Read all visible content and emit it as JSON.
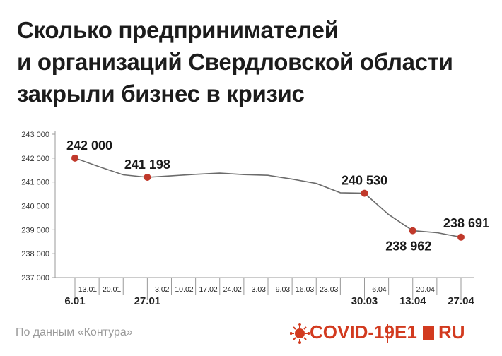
{
  "title_lines": [
    "Сколько предпринимателей",
    "и организаций Свердловской области",
    "закрыли бизнес в кризис"
  ],
  "source_text": "По данным «Контура»",
  "brand": {
    "covid_label": "COVID-19",
    "e1_label": "E1",
    "ru_label": "RU",
    "accent_color": "#d23a1f"
  },
  "chart_data": {
    "type": "line",
    "title": "Сколько предпринимателей и организаций Свердловской области закрыли бизнес в кризис",
    "ylim": [
      237000,
      243000
    ],
    "yticks": [
      "237 000",
      "238 000",
      "239 000",
      "240 000",
      "241 000",
      "242 000",
      "243 000"
    ],
    "ytick_values": [
      237000,
      238000,
      239000,
      240000,
      241000,
      242000,
      243000
    ],
    "x": [
      "6.01",
      "13.01",
      "20.01",
      "27.01",
      "3.02",
      "10.02",
      "17.02",
      "24.02",
      "3.03",
      "9.03",
      "16.03",
      "23.03",
      "30.03",
      "6.04",
      "13.04",
      "20.04",
      "27.04"
    ],
    "values": [
      242000,
      241640,
      241300,
      241198,
      241260,
      241320,
      241370,
      241310,
      241280,
      241120,
      240940,
      240550,
      240530,
      239640,
      238962,
      238880,
      238691
    ],
    "highlighted": [
      {
        "x": "6.01",
        "value": 242000,
        "label": "242 000",
        "label_pos": "above"
      },
      {
        "x": "27.01",
        "value": 241198,
        "label": "241 198",
        "label_pos": "above"
      },
      {
        "x": "30.03",
        "value": 240530,
        "label": "240 530",
        "label_pos": "above"
      },
      {
        "x": "13.04",
        "value": 238962,
        "label": "238 962",
        "label_pos": "below"
      },
      {
        "x": "27.04",
        "value": 238691,
        "label": "238 691",
        "label_pos": "above"
      }
    ],
    "bold_xticks": [
      "6.01",
      "27.01",
      "30.03",
      "13.04",
      "27.04"
    ],
    "line_color": "#6b6b6b",
    "point_color": "#c0392b",
    "grid": false
  }
}
